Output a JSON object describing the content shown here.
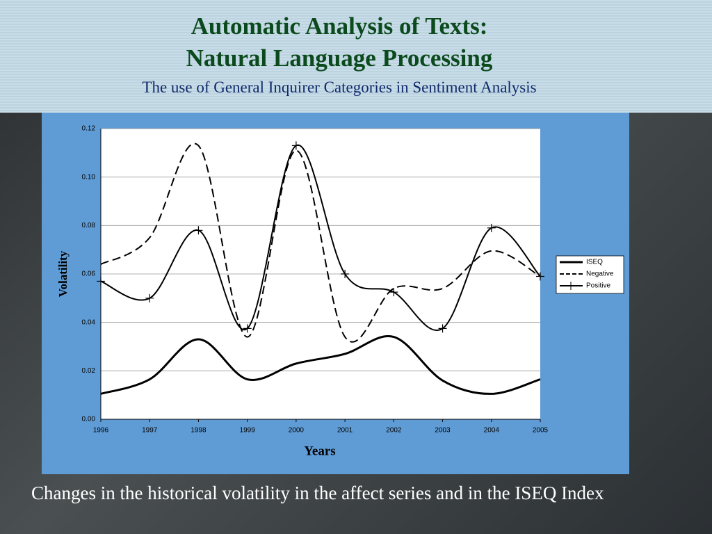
{
  "slide": {
    "title_line1": "Automatic Analysis of Texts:",
    "title_line2": "Natural Language Processing",
    "subtitle": "The use of General Inquirer Categories in Sentiment Analysis",
    "caption": "Changes in the historical volatility in the affect series and in the ISEQ Index"
  },
  "chart_data": {
    "type": "line",
    "xlabel": "Years",
    "ylabel": "Volatility",
    "x": [
      1996,
      1997,
      1998,
      1999,
      2000,
      2001,
      2002,
      2003,
      2004,
      2005
    ],
    "series": [
      {
        "name": "ISEQ",
        "color": "#000000",
        "dash": false,
        "marker": null,
        "values": [
          0.0105,
          0.0165,
          0.033,
          0.0165,
          0.023,
          0.027,
          0.034,
          0.016,
          0.0105,
          0.0165
        ]
      },
      {
        "name": "Negative",
        "color": "#000000",
        "dash": true,
        "marker": null,
        "values": [
          0.064,
          0.075,
          0.113,
          0.034,
          0.111,
          0.034,
          0.054,
          0.054,
          0.0695,
          0.059
        ]
      },
      {
        "name": "Positive",
        "color": "#000000",
        "dash": false,
        "marker": "+",
        "values": [
          0.057,
          0.05,
          0.078,
          0.0375,
          0.113,
          0.06,
          0.0525,
          0.0375,
          0.079,
          0.059
        ]
      }
    ],
    "xlim": [
      1996,
      2005
    ],
    "xticks": [
      1996,
      1997,
      1998,
      1999,
      2000,
      2001,
      2002,
      2003,
      2004,
      2005
    ],
    "ylim": [
      0,
      0.12
    ],
    "yticks": [
      {
        "value": 0,
        "label": "0.00"
      },
      {
        "value": 0.02,
        "label": "0.02"
      },
      {
        "value": 0.04,
        "label": "0.04"
      },
      {
        "value": 0.06,
        "label": "0.06"
      },
      {
        "value": 0.08,
        "label": "0.08"
      },
      {
        "value": 0.1,
        "label": "0.10"
      },
      {
        "value": 0.12,
        "label": "0.12"
      }
    ],
    "grid": true,
    "legend": "right",
    "smooth": true
  }
}
